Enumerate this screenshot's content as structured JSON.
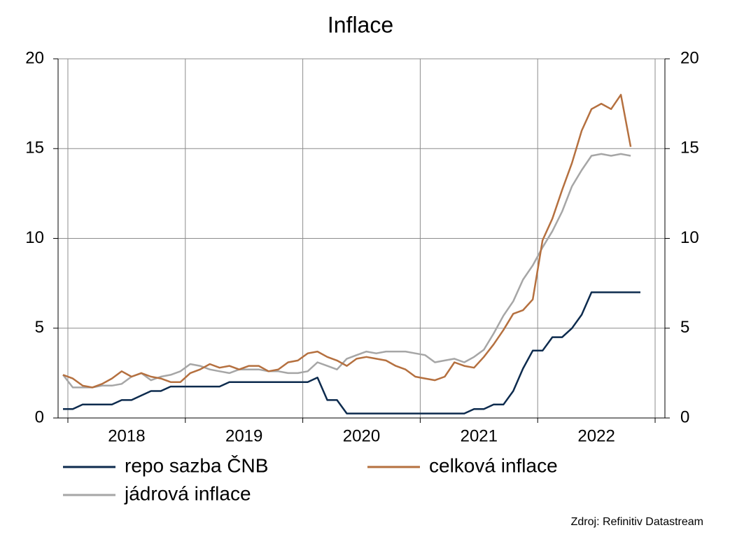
{
  "chart_data": {
    "type": "line",
    "title": "Inflace",
    "source": "Zdroj: Refinitiv Datastream",
    "categories": [
      null,
      null,
      null,
      null,
      null,
      null,
      null,
      "2018",
      null,
      null,
      null,
      null,
      null,
      null,
      null,
      null,
      null,
      null,
      null,
      "2019",
      null,
      null,
      null,
      null,
      null,
      null,
      null,
      null,
      null,
      null,
      null,
      "2020",
      null,
      null,
      null,
      null,
      null,
      null,
      null,
      null,
      null,
      null,
      null,
      "2021",
      null,
      null,
      null,
      null,
      null,
      null,
      null,
      null,
      null,
      null,
      null,
      "2022",
      null,
      null,
      null,
      null,
      null,
      null
    ],
    "series": [
      {
        "name": "repo sazba ČNB",
        "color": "#0d2b4e",
        "values": [
          0.5,
          0.5,
          0.75,
          0.75,
          0.75,
          0.75,
          1.0,
          1.0,
          1.25,
          1.5,
          1.5,
          1.75,
          1.75,
          1.75,
          1.75,
          1.75,
          1.75,
          2.0,
          2.0,
          2.0,
          2.0,
          2.0,
          2.0,
          2.0,
          2.0,
          2.0,
          2.25,
          1.0,
          1.0,
          0.25,
          0.25,
          0.25,
          0.25,
          0.25,
          0.25,
          0.25,
          0.25,
          0.25,
          0.25,
          0.25,
          0.25,
          0.25,
          0.5,
          0.5,
          0.75,
          0.75,
          1.5,
          2.75,
          3.75,
          3.75,
          4.5,
          4.5,
          5.0,
          5.75,
          7.0,
          7.0,
          7.0,
          7.0,
          7.0,
          7.0,
          null,
          null
        ]
      },
      {
        "name": "celková inflace",
        "color": "#b5703f",
        "values": [
          2.4,
          2.2,
          1.8,
          1.7,
          1.9,
          2.2,
          2.6,
          2.3,
          2.5,
          2.3,
          2.2,
          2.0,
          2.0,
          2.5,
          2.7,
          3.0,
          2.8,
          2.9,
          2.7,
          2.9,
          2.9,
          2.6,
          2.7,
          3.1,
          3.2,
          3.6,
          3.7,
          3.4,
          3.2,
          2.9,
          3.3,
          3.4,
          3.3,
          3.2,
          2.9,
          2.7,
          2.3,
          2.2,
          2.1,
          2.3,
          3.1,
          2.9,
          2.8,
          3.4,
          4.1,
          4.9,
          5.8,
          6.0,
          6.6,
          9.9,
          11.1,
          12.7,
          14.2,
          16.0,
          17.2,
          17.5,
          17.2,
          18.0,
          15.1,
          null,
          null,
          null
        ]
      },
      {
        "name": "jádrová inflace",
        "color": "#a6a6a6",
        "values": [
          2.4,
          1.7,
          1.7,
          1.7,
          1.8,
          1.8,
          1.9,
          2.3,
          2.5,
          2.1,
          2.3,
          2.4,
          2.6,
          3.0,
          2.9,
          2.7,
          2.6,
          2.5,
          2.7,
          2.7,
          2.7,
          2.6,
          2.6,
          2.5,
          2.5,
          2.6,
          3.1,
          2.9,
          2.7,
          3.3,
          3.5,
          3.7,
          3.6,
          3.7,
          3.7,
          3.7,
          3.6,
          3.5,
          3.1,
          3.2,
          3.3,
          3.1,
          3.4,
          3.8,
          4.7,
          5.7,
          6.5,
          7.7,
          8.5,
          9.5,
          10.4,
          11.5,
          12.9,
          13.8,
          14.6,
          14.7,
          14.6,
          14.7,
          14.6,
          null,
          null,
          null
        ]
      }
    ],
    "ylim": [
      0,
      20
    ],
    "yticks": [
      0,
      5,
      10,
      15,
      20
    ],
    "y2lim": [
      0,
      20
    ],
    "y2ticks": [
      0,
      5,
      10,
      15,
      20
    ],
    "grid": true
  }
}
